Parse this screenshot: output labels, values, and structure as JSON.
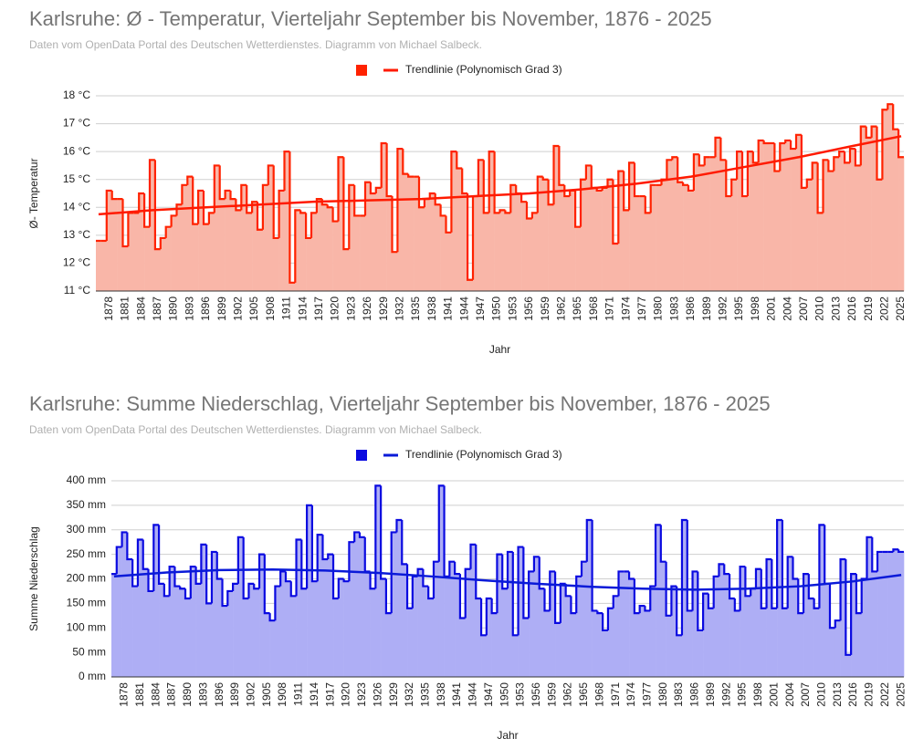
{
  "chart_data": [
    {
      "type": "area",
      "title": "Karlsruhe: Ø - Temperatur,  Vierteljahr September bis November, 1876 - 2025",
      "subtitle": "Daten vom OpenData Portal des Deutschen Wetterdienstes. Diagramm von Michael Salbeck.",
      "y_label": "Ø- Temperatur",
      "x_label": "Jahr",
      "xlim": [
        1875.5,
        2025.5
      ],
      "xticks": [
        1878,
        1881,
        1884,
        1887,
        1890,
        1893,
        1896,
        1899,
        1902,
        1905,
        1908,
        1911,
        1914,
        1917,
        1920,
        1923,
        1926,
        1929,
        1932,
        1935,
        1938,
        1941,
        1944,
        1947,
        1950,
        1953,
        1956,
        1959,
        1962,
        1965,
        1968,
        1971,
        1974,
        1977,
        1980,
        1983,
        1986,
        1989,
        1992,
        1995,
        1998,
        2001,
        2004,
        2007,
        2010,
        2013,
        2016,
        2019,
        2022,
        2025
      ],
      "ylim": [
        11,
        18
      ],
      "yticks": [
        {
          "value": 11,
          "label": "11 °C"
        },
        {
          "value": 12,
          "label": "12 °C"
        },
        {
          "value": 13,
          "label": "13 °C"
        },
        {
          "value": 14,
          "label": "14 °C"
        },
        {
          "value": 15,
          "label": "15 °C"
        },
        {
          "value": 16,
          "label": "16 °C"
        },
        {
          "value": 17,
          "label": "17 °C"
        },
        {
          "value": 18,
          "label": "18 °C"
        }
      ],
      "grid": true,
      "x": [
        1876,
        1877,
        1878,
        1879,
        1880,
        1881,
        1882,
        1883,
        1884,
        1885,
        1886,
        1887,
        1888,
        1889,
        1890,
        1891,
        1892,
        1893,
        1894,
        1895,
        1896,
        1897,
        1898,
        1899,
        1900,
        1901,
        1902,
        1903,
        1904,
        1905,
        1906,
        1907,
        1908,
        1909,
        1910,
        1911,
        1912,
        1913,
        1914,
        1915,
        1916,
        1917,
        1918,
        1919,
        1920,
        1921,
        1922,
        1923,
        1924,
        1925,
        1926,
        1927,
        1928,
        1929,
        1930,
        1931,
        1932,
        1933,
        1934,
        1935,
        1936,
        1937,
        1938,
        1939,
        1940,
        1941,
        1942,
        1943,
        1944,
        1945,
        1946,
        1947,
        1948,
        1949,
        1950,
        1951,
        1952,
        1953,
        1954,
        1955,
        1956,
        1957,
        1958,
        1959,
        1960,
        1961,
        1962,
        1963,
        1964,
        1965,
        1966,
        1967,
        1968,
        1969,
        1970,
        1971,
        1972,
        1973,
        1974,
        1975,
        1976,
        1977,
        1978,
        1979,
        1980,
        1981,
        1982,
        1983,
        1984,
        1985,
        1986,
        1987,
        1988,
        1989,
        1990,
        1991,
        1992,
        1993,
        1994,
        1995,
        1996,
        1997,
        1998,
        1999,
        2000,
        2001,
        2002,
        2003,
        2004,
        2005,
        2006,
        2007,
        2008,
        2009,
        2010,
        2011,
        2012,
        2013,
        2014,
        2015,
        2016,
        2017,
        2018,
        2019,
        2020,
        2021,
        2022,
        2023,
        2024,
        2025
      ],
      "series": [
        {
          "color": "#ff2200",
          "fill": "#f9b6a8",
          "values": [
            12.8,
            12.8,
            14.6,
            14.3,
            14.3,
            12.6,
            13.8,
            13.8,
            14.5,
            13.3,
            15.7,
            12.5,
            12.9,
            13.3,
            13.7,
            14.1,
            14.8,
            15.1,
            13.4,
            14.6,
            13.4,
            13.8,
            15.5,
            14.3,
            14.6,
            14.3,
            13.9,
            14.8,
            13.8,
            14.2,
            13.2,
            14.8,
            15.5,
            12.9,
            14.6,
            16.0,
            11.3,
            13.9,
            13.8,
            12.9,
            13.8,
            14.3,
            14.1,
            14.0,
            13.5,
            15.8,
            12.5,
            14.8,
            13.7,
            13.7,
            14.9,
            14.5,
            14.7,
            16.3,
            14.4,
            12.4,
            16.1,
            15.2,
            15.1,
            15.1,
            14.0,
            14.3,
            14.5,
            14.1,
            13.7,
            13.1,
            16.0,
            15.4,
            14.5,
            11.4,
            14.4,
            15.7,
            13.8,
            16.0,
            13.8,
            13.9,
            13.8,
            14.8,
            14.5,
            14.2,
            13.6,
            13.8,
            15.1,
            15.0,
            14.1,
            16.2,
            14.8,
            14.4,
            14.6,
            13.3,
            15.0,
            15.5,
            14.7,
            14.6,
            14.7,
            15.0,
            12.7,
            15.3,
            13.9,
            15.6,
            14.4,
            14.4,
            13.8,
            14.8,
            14.8,
            15.0,
            15.7,
            15.8,
            14.9,
            14.8,
            14.6,
            15.9,
            15.5,
            15.8,
            15.8,
            16.5,
            15.7,
            14.4,
            15.0,
            16.0,
            14.4,
            16.0,
            15.6,
            16.4,
            16.3,
            16.3,
            15.3,
            16.3,
            16.4,
            16.1,
            16.6,
            14.7,
            15.0,
            15.6,
            13.8,
            15.7,
            15.3,
            15.8,
            16.0,
            15.6,
            16.1,
            15.5,
            16.9,
            16.5,
            16.9,
            15.0,
            17.5,
            17.7,
            16.8,
            15.8
          ]
        },
        {
          "name": "Trendlinie (Polynomisch Grad 3)",
          "color": "#ff1a00",
          "type": "line",
          "x": [
            1876,
            1886,
            1896,
            1906,
            1916,
            1926,
            1936,
            1946,
            1956,
            1966,
            1976,
            1986,
            1996,
            2006,
            2016,
            2025
          ],
          "values": [
            13.75,
            13.9,
            14.0,
            14.1,
            14.2,
            14.25,
            14.3,
            14.4,
            14.5,
            14.65,
            14.85,
            15.1,
            15.45,
            15.8,
            16.2,
            16.55
          ]
        }
      ]
    },
    {
      "type": "area",
      "title": "Karlsruhe: Summe Niederschlag,  Vierteljahr September bis November, 1876 - 2025",
      "subtitle": "Daten vom OpenData Portal des Deutschen Wetterdienstes. Diagramm von Michael Salbeck.",
      "y_label": "Summe Niederschlag",
      "x_label": "Jahr",
      "xlim": [
        1875.5,
        2025.5
      ],
      "xticks": [
        1878,
        1881,
        1884,
        1887,
        1890,
        1893,
        1896,
        1899,
        1902,
        1905,
        1908,
        1911,
        1914,
        1917,
        1920,
        1923,
        1926,
        1929,
        1932,
        1935,
        1938,
        1941,
        1944,
        1947,
        1950,
        1953,
        1956,
        1959,
        1962,
        1965,
        1968,
        1971,
        1974,
        1977,
        1980,
        1983,
        1986,
        1989,
        1992,
        1995,
        1998,
        2001,
        2004,
        2007,
        2010,
        2013,
        2016,
        2019,
        2022,
        2025
      ],
      "ylim": [
        0,
        400
      ],
      "yticks": [
        {
          "value": 0,
          "label": "0 mm"
        },
        {
          "value": 50,
          "label": "50 mm"
        },
        {
          "value": 100,
          "label": "100 mm"
        },
        {
          "value": 150,
          "label": "150 mm"
        },
        {
          "value": 200,
          "label": "200 mm"
        },
        {
          "value": 250,
          "label": "250 mm"
        },
        {
          "value": 300,
          "label": "300 mm"
        },
        {
          "value": 350,
          "label": "350 mm"
        },
        {
          "value": 400,
          "label": "400 mm"
        }
      ],
      "grid": true,
      "x": [
        1876,
        1877,
        1878,
        1879,
        1880,
        1881,
        1882,
        1883,
        1884,
        1885,
        1886,
        1887,
        1888,
        1889,
        1890,
        1891,
        1892,
        1893,
        1894,
        1895,
        1896,
        1897,
        1898,
        1899,
        1900,
        1901,
        1902,
        1903,
        1904,
        1905,
        1906,
        1907,
        1908,
        1909,
        1910,
        1911,
        1912,
        1913,
        1914,
        1915,
        1916,
        1917,
        1918,
        1919,
        1920,
        1921,
        1922,
        1923,
        1924,
        1925,
        1926,
        1927,
        1928,
        1929,
        1930,
        1931,
        1932,
        1933,
        1934,
        1935,
        1936,
        1937,
        1938,
        1939,
        1940,
        1941,
        1942,
        1943,
        1944,
        1945,
        1946,
        1947,
        1948,
        1949,
        1950,
        1951,
        1952,
        1953,
        1954,
        1955,
        1956,
        1957,
        1958,
        1959,
        1960,
        1961,
        1962,
        1963,
        1964,
        1965,
        1966,
        1967,
        1968,
        1969,
        1970,
        1971,
        1972,
        1973,
        1974,
        1975,
        1976,
        1977,
        1978,
        1979,
        1980,
        1981,
        1982,
        1983,
        1984,
        1985,
        1986,
        1987,
        1988,
        1989,
        1990,
        1991,
        1992,
        1993,
        1994,
        1995,
        1996,
        1997,
        1998,
        1999,
        2000,
        2001,
        2002,
        2003,
        2004,
        2005,
        2006,
        2007,
        2008,
        2009,
        2010,
        2011,
        2012,
        2013,
        2014,
        2015,
        2016,
        2017,
        2018,
        2019,
        2020,
        2021,
        2022,
        2023,
        2024,
        2025
      ],
      "series": [
        {
          "color": "#0a0ae0",
          "fill": "#aeaef5",
          "values": [
            210,
            265,
            295,
            240,
            185,
            280,
            220,
            175,
            310,
            190,
            165,
            225,
            185,
            180,
            160,
            225,
            190,
            270,
            150,
            255,
            200,
            145,
            175,
            190,
            285,
            160,
            190,
            180,
            250,
            130,
            115,
            185,
            215,
            195,
            165,
            280,
            180,
            350,
            195,
            290,
            240,
            250,
            160,
            200,
            195,
            275,
            295,
            285,
            215,
            180,
            390,
            200,
            130,
            295,
            320,
            230,
            140,
            205,
            220,
            185,
            160,
            235,
            390,
            205,
            235,
            210,
            120,
            220,
            270,
            160,
            85,
            160,
            130,
            250,
            180,
            255,
            85,
            265,
            120,
            215,
            245,
            180,
            135,
            215,
            110,
            190,
            165,
            130,
            205,
            235,
            320,
            135,
            130,
            95,
            140,
            165,
            215,
            215,
            200,
            130,
            145,
            135,
            185,
            310,
            235,
            125,
            185,
            85,
            320,
            135,
            215,
            95,
            170,
            140,
            205,
            230,
            210,
            160,
            135,
            225,
            165,
            180,
            220,
            140,
            240,
            140,
            320,
            140,
            245,
            200,
            130,
            210,
            160,
            140,
            310,
            190,
            100,
            115,
            240,
            45,
            210,
            130,
            200,
            285,
            215,
            255,
            255,
            255,
            260,
            255
          ]
        },
        {
          "name": "Trendlinie (Polynomisch Grad 3)",
          "color": "#0a1ad8",
          "type": "line",
          "x": [
            1876,
            1886,
            1896,
            1906,
            1916,
            1926,
            1936,
            1946,
            1956,
            1966,
            1976,
            1986,
            1996,
            2006,
            2016,
            2025
          ],
          "values": [
            205,
            213,
            218,
            219,
            217,
            212,
            205,
            197,
            190,
            184,
            180,
            178,
            180,
            185,
            195,
            208
          ]
        }
      ]
    }
  ]
}
